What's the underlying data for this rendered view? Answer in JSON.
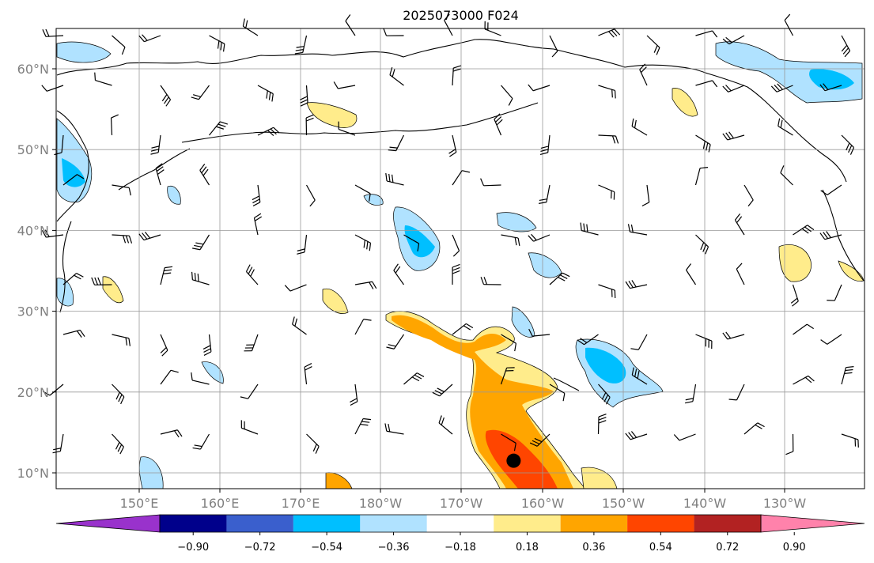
{
  "title": "2025073000 F024",
  "map": {
    "lat_labels": [
      "60°N",
      "50°N",
      "40°N",
      "30°N",
      "20°N",
      "10°N"
    ],
    "lon_labels": [
      "150°E",
      "160°E",
      "170°E",
      "180°W",
      "170°W",
      "160°W",
      "150°W",
      "140°W",
      "130°W"
    ],
    "storm_marker": {
      "lat": 11.5,
      "lon": -163.5
    }
  },
  "colorbar": {
    "labels": [
      "−0.90",
      "−0.72",
      "−0.54",
      "−0.36",
      "−0.18",
      "0.18",
      "0.36",
      "0.54",
      "0.72",
      "0.90"
    ],
    "colors": [
      "#9932CC",
      "#00008B",
      "#3A5FCD",
      "#00BFFF",
      "#B0E2FF",
      "#FFFFFF",
      "#FFEC8B",
      "#FFA500",
      "#FF4500",
      "#B22222",
      "#FF82AB"
    ]
  }
}
